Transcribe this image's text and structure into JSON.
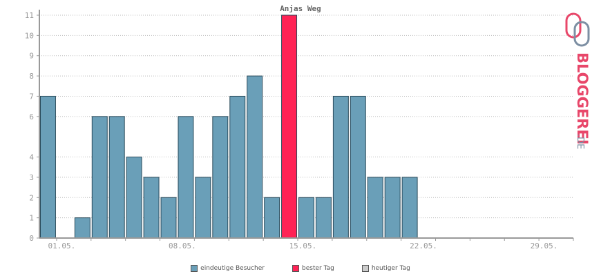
{
  "chart_data": {
    "type": "bar",
    "title": "Anjas Weg",
    "categories": [
      "01.05.",
      "02.05.",
      "03.05.",
      "04.05.",
      "05.05.",
      "06.05.",
      "07.05.",
      "08.05.",
      "09.05.",
      "10.05.",
      "11.05.",
      "12.05.",
      "13.05.",
      "14.05.",
      "15.05.",
      "16.05.",
      "17.05.",
      "18.05.",
      "19.05.",
      "20.05.",
      "21.05.",
      "22.05.",
      "23.05.",
      "24.05.",
      "25.05.",
      "26.05.",
      "27.05.",
      "28.05.",
      "29.05.",
      "30.05.",
      "31.05."
    ],
    "values": [
      7,
      0,
      1,
      6,
      6,
      4,
      3,
      2,
      6,
      3,
      6,
      7,
      8,
      2,
      11,
      2,
      2,
      7,
      7,
      3,
      3,
      3,
      0,
      0,
      0,
      0,
      0,
      0,
      0,
      0,
      0
    ],
    "highlight_index": 14,
    "x_tick_labels": [
      "01.05.",
      "08.05.",
      "15.05.",
      "22.05.",
      "29.05."
    ],
    "y_ticks": [
      0,
      1,
      2,
      3,
      4,
      6,
      7,
      8,
      9,
      10,
      11
    ],
    "ylim": [
      0,
      11
    ],
    "grid": true,
    "legend_placement": "bottom-center"
  },
  "legend": {
    "items": [
      {
        "label": "eindeutige Besucher",
        "color": "#6a9fb8"
      },
      {
        "label": "bester Tag",
        "color": "#ff2255"
      },
      {
        "label": "heutiger Tag",
        "color": "#cccccc"
      }
    ]
  },
  "colors": {
    "bar": "#6a9fb8",
    "best": "#ff2255",
    "bar_border": "#2a4a5a",
    "grid": "#bbbbbb",
    "axis": "#999999"
  },
  "logo": {
    "text_main": "BLOGGEREI",
    "text_suffix": ".DE"
  }
}
